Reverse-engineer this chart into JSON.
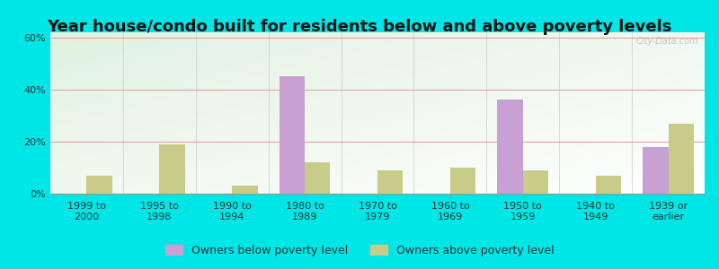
{
  "title": "Year house/condo built for residents below and above poverty levels",
  "categories": [
    "1999 to\n2000",
    "1995 to\n1998",
    "1990 to\n1994",
    "1980 to\n1989",
    "1970 to\n1979",
    "1960 to\n1969",
    "1950 to\n1959",
    "1940 to\n1949",
    "1939 or\nearlier"
  ],
  "below_poverty": [
    0,
    0,
    0,
    45,
    0,
    0,
    36,
    0,
    18
  ],
  "above_poverty": [
    7,
    19,
    3,
    12,
    9,
    10,
    9,
    7,
    27
  ],
  "below_color": "#c8a0d4",
  "above_color": "#c8cc88",
  "ylim": [
    0,
    62
  ],
  "yticks": [
    0,
    20,
    40,
    60
  ],
  "ytick_labels": [
    "0%",
    "20%",
    "40%",
    "60%"
  ],
  "legend_below": "Owners below poverty level",
  "legend_above": "Owners above poverty level",
  "title_fontsize": 13,
  "tick_fontsize": 8,
  "legend_fontsize": 9,
  "bar_width": 0.35,
  "outer_bg": "#00e5e5",
  "grid_color": "#e8a0a0",
  "spine_color": "#999999"
}
